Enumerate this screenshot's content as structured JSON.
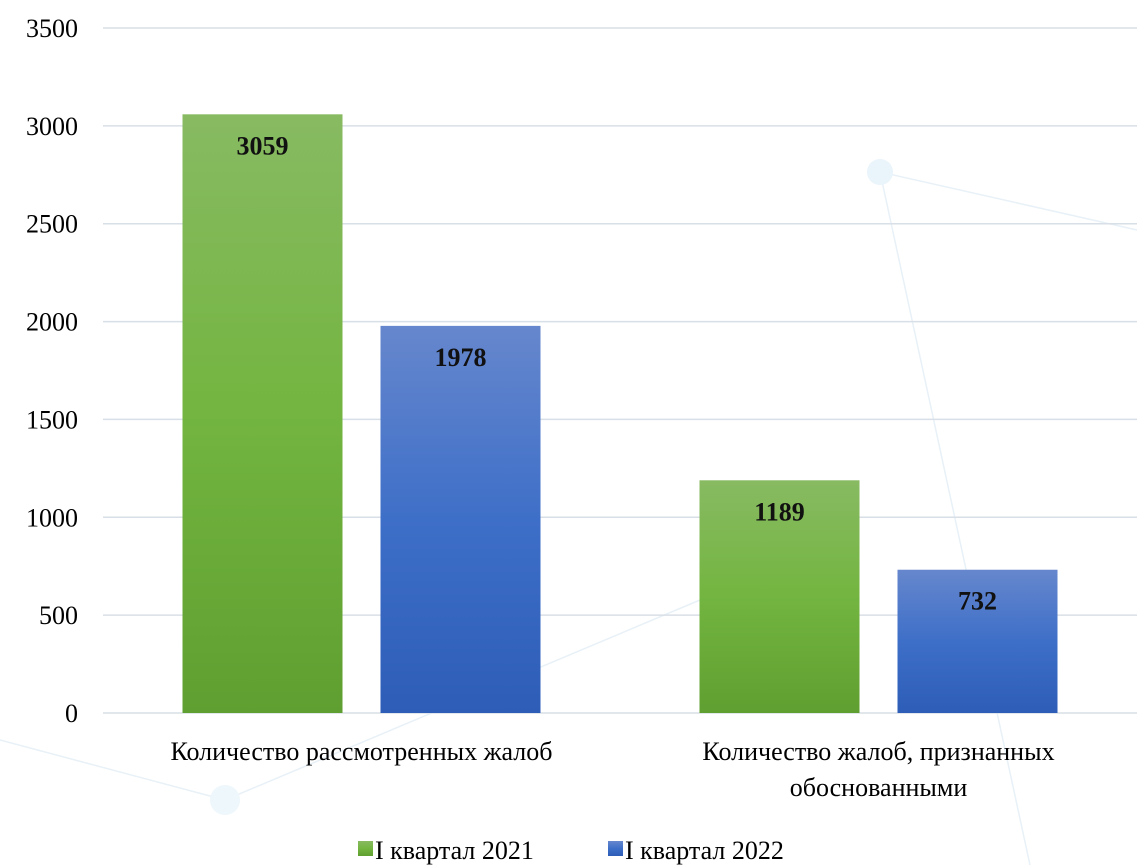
{
  "chart_data": {
    "type": "bar",
    "title": "",
    "xlabel": "",
    "ylabel": "",
    "categories": [
      [
        "Количество рассмотренных жалоб"
      ],
      [
        "Количество жалоб, признанных",
        "обоснованными"
      ]
    ],
    "series": [
      {
        "name": "I квартал 2021",
        "values": [
          3059,
          1189
        ],
        "color": "#6aab3c"
      },
      {
        "name": "I квартал 2022",
        "values": [
          1978,
          732
        ],
        "color": "#3f6fc4"
      }
    ],
    "ylim": [
      0,
      3500
    ],
    "yticks": [
      0,
      500,
      1000,
      1500,
      2000,
      2500,
      3000,
      3500
    ],
    "grid": true,
    "legend_position": "bottom",
    "data_labels": "inside-top"
  }
}
